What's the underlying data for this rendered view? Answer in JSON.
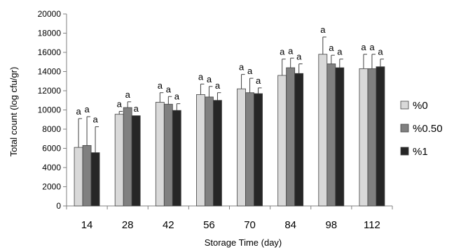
{
  "chart_data": {
    "type": "bar",
    "xlabel": "Storage Time (day)",
    "ylabel": "Total count (log cfu/gr)",
    "ylim": [
      0,
      20000
    ],
    "yticks": [
      0,
      2000,
      4000,
      6000,
      8000,
      10000,
      12000,
      14000,
      16000,
      18000,
      20000
    ],
    "categories": [
      "14",
      "28",
      "42",
      "56",
      "70",
      "84",
      "98",
      "112"
    ],
    "series": [
      {
        "name": "%0",
        "color": "#d9d9d9",
        "values": [
          6100,
          9550,
          10800,
          11600,
          12200,
          13600,
          15800,
          14300
        ],
        "errors": [
          3000,
          300,
          1000,
          1100,
          1500,
          1700,
          1800,
          1500
        ]
      },
      {
        "name": "%0.50",
        "color": "#808080",
        "values": [
          6300,
          10250,
          10600,
          11350,
          11800,
          14400,
          14800,
          14300
        ],
        "errors": [
          3000,
          600,
          800,
          1100,
          1500,
          1000,
          900,
          1500
        ]
      },
      {
        "name": "%1",
        "color": "#262626",
        "values": [
          5550,
          9400,
          9950,
          11000,
          11700,
          13800,
          14400,
          14500
        ],
        "errors": [
          2700,
          0,
          700,
          800,
          600,
          1000,
          900,
          800
        ]
      }
    ],
    "annotation_label": "a",
    "legend_position": "right",
    "grid": false
  }
}
